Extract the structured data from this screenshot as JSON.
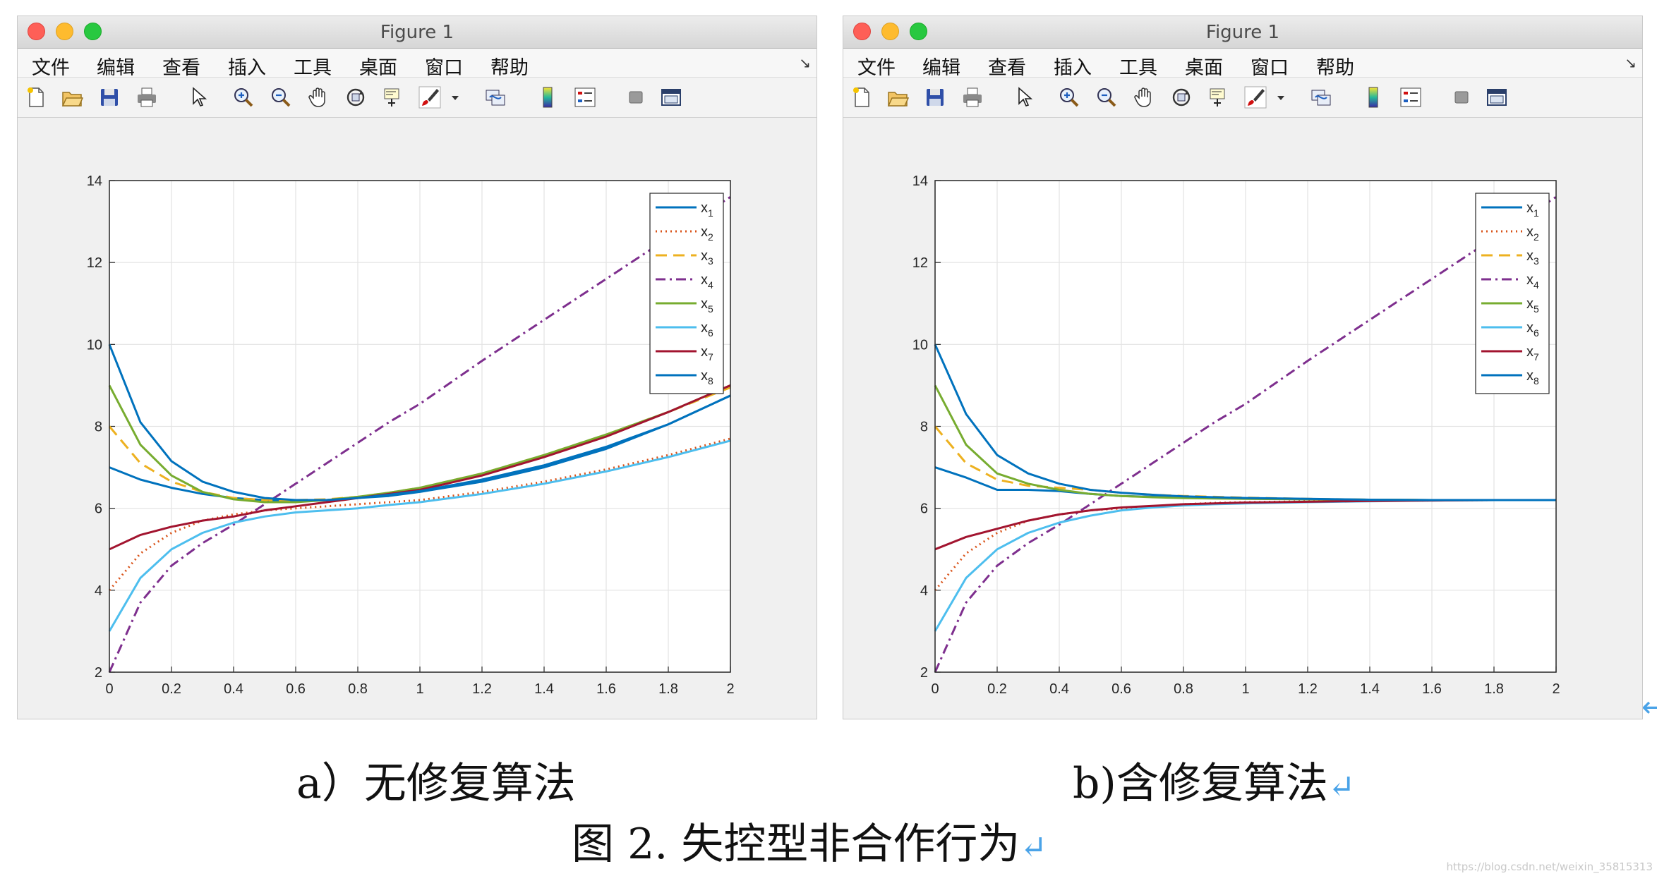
{
  "windows": [
    {
      "id": "left",
      "title": "Figure 1",
      "menu": [
        "文件",
        "编辑",
        "查看",
        "插入",
        "工具",
        "桌面",
        "窗口",
        "帮助"
      ],
      "menu_corner": "↘",
      "toolbar": [
        "new-file-icon",
        "open-folder-icon",
        "save-icon",
        "print-icon",
        "pointer-icon",
        "zoom-in-icon",
        "zoom-out-icon",
        "pan-hand-icon",
        "rotate-3d-icon",
        "data-cursor-icon",
        "brush-icon",
        "dropdown-arrow-icon",
        "link-plot-icon",
        "colorbar-icon",
        "legend-icon",
        "hide-tools-icon",
        "dock-window-icon"
      ]
    },
    {
      "id": "right",
      "title": "Figure 1",
      "menu": [
        "文件",
        "编辑",
        "查看",
        "插入",
        "工具",
        "桌面",
        "窗口",
        "帮助"
      ],
      "menu_corner": "↘",
      "toolbar": [
        "new-file-icon",
        "open-folder-icon",
        "save-icon",
        "print-icon",
        "pointer-icon",
        "zoom-in-icon",
        "zoom-out-icon",
        "pan-hand-icon",
        "rotate-3d-icon",
        "data-cursor-icon",
        "brush-icon",
        "dropdown-arrow-icon",
        "link-plot-icon",
        "colorbar-icon",
        "legend-icon",
        "hide-tools-icon",
        "dock-window-icon"
      ]
    }
  ],
  "chart_data": [
    {
      "type": "line",
      "title": "",
      "xlabel": "",
      "ylabel": "",
      "xlim": [
        0,
        2
      ],
      "ylim": [
        2,
        14
      ],
      "xticks": [
        "0",
        "0.2",
        "0.4",
        "0.6",
        "0.8",
        "1",
        "1.2",
        "1.4",
        "1.6",
        "1.8",
        "2"
      ],
      "yticks": [
        "2",
        "4",
        "6",
        "8",
        "10",
        "12",
        "14"
      ],
      "grid": true,
      "legend_position": "top-right",
      "x": [
        0,
        0.1,
        0.2,
        0.3,
        0.4,
        0.5,
        0.6,
        0.7,
        0.8,
        0.9,
        1.0,
        1.2,
        1.4,
        1.6,
        1.8,
        2.0
      ],
      "series": [
        {
          "name": "x",
          "sub": "1",
          "color": "#0072bd",
          "dash": "solid",
          "values": [
            7.0,
            6.7,
            6.5,
            6.35,
            6.25,
            6.2,
            6.18,
            6.2,
            6.25,
            6.3,
            6.4,
            6.65,
            7.0,
            7.45,
            8.05,
            8.75
          ]
        },
        {
          "name": "x",
          "sub": "2",
          "color": "#d95319",
          "dash": "dotted",
          "values": [
            4.0,
            4.9,
            5.4,
            5.7,
            5.85,
            5.95,
            6.0,
            6.05,
            6.1,
            6.15,
            6.2,
            6.4,
            6.65,
            6.95,
            7.3,
            7.7
          ]
        },
        {
          "name": "x",
          "sub": "3",
          "color": "#edb120",
          "dash": "dashed",
          "values": [
            8.0,
            7.1,
            6.65,
            6.4,
            6.25,
            6.2,
            6.2,
            6.22,
            6.28,
            6.38,
            6.5,
            6.85,
            7.3,
            7.8,
            8.35,
            8.95
          ]
        },
        {
          "name": "x",
          "sub": "4",
          "color": "#7e2f8e",
          "dash": "dashdot",
          "values": [
            2.0,
            3.7,
            4.6,
            5.15,
            5.6,
            6.1,
            6.6,
            7.1,
            7.6,
            8.1,
            8.55,
            9.6,
            10.6,
            11.6,
            12.6,
            13.6
          ]
        },
        {
          "name": "x",
          "sub": "5",
          "color": "#77ac30",
          "dash": "solid",
          "values": [
            9.0,
            7.55,
            6.8,
            6.4,
            6.22,
            6.15,
            6.15,
            6.2,
            6.28,
            6.38,
            6.5,
            6.85,
            7.3,
            7.8,
            8.35,
            9.0
          ]
        },
        {
          "name": "x",
          "sub": "6",
          "color": "#4dbeee",
          "dash": "solid",
          "values": [
            3.0,
            4.3,
            5.0,
            5.4,
            5.65,
            5.8,
            5.9,
            5.95,
            6.0,
            6.08,
            6.15,
            6.35,
            6.6,
            6.9,
            7.25,
            7.65
          ]
        },
        {
          "name": "x",
          "sub": "7",
          "color": "#a2142f",
          "dash": "solid",
          "values": [
            5.0,
            5.35,
            5.55,
            5.7,
            5.8,
            5.95,
            6.05,
            6.15,
            6.25,
            6.35,
            6.45,
            6.8,
            7.25,
            7.75,
            8.35,
            9.0
          ]
        },
        {
          "name": "x",
          "sub": "8",
          "color": "#0072bd",
          "dash": "solid",
          "values": [
            10.0,
            8.1,
            7.15,
            6.65,
            6.4,
            6.25,
            6.2,
            6.2,
            6.25,
            6.33,
            6.42,
            6.7,
            7.05,
            7.5,
            8.05,
            8.75
          ]
        }
      ]
    },
    {
      "type": "line",
      "title": "",
      "xlabel": "",
      "ylabel": "",
      "xlim": [
        0,
        2
      ],
      "ylim": [
        2,
        14
      ],
      "xticks": [
        "0",
        "0.2",
        "0.4",
        "0.6",
        "0.8",
        "1",
        "1.2",
        "1.4",
        "1.6",
        "1.8",
        "2"
      ],
      "yticks": [
        "2",
        "4",
        "6",
        "8",
        "10",
        "12",
        "14"
      ],
      "grid": true,
      "legend_position": "top-right",
      "x": [
        0,
        0.1,
        0.2,
        0.3,
        0.4,
        0.5,
        0.6,
        0.7,
        0.8,
        0.9,
        1.0,
        1.2,
        1.4,
        1.6,
        1.8,
        2.0
      ],
      "series": [
        {
          "name": "x",
          "sub": "1",
          "color": "#0072bd",
          "dash": "solid",
          "values": [
            7.0,
            6.75,
            6.45,
            6.45,
            6.42,
            6.35,
            6.3,
            6.28,
            6.26,
            6.25,
            6.24,
            6.22,
            6.21,
            6.2,
            6.2,
            6.2
          ]
        },
        {
          "name": "x",
          "sub": "2",
          "color": "#d95319",
          "dash": "dotted",
          "values": [
            4.0,
            4.9,
            5.4,
            5.7,
            5.85,
            5.95,
            6.0,
            6.05,
            6.1,
            6.13,
            6.15,
            6.17,
            6.18,
            6.19,
            6.2,
            6.2
          ]
        },
        {
          "name": "x",
          "sub": "3",
          "color": "#edb120",
          "dash": "dashed",
          "values": [
            8.0,
            7.1,
            6.7,
            6.55,
            6.5,
            6.45,
            6.38,
            6.33,
            6.3,
            6.28,
            6.26,
            6.23,
            6.21,
            6.2,
            6.2,
            6.2
          ]
        },
        {
          "name": "x",
          "sub": "4",
          "color": "#7e2f8e",
          "dash": "dashdot",
          "values": [
            2.0,
            3.7,
            4.6,
            5.15,
            5.6,
            6.1,
            6.6,
            7.1,
            7.6,
            8.1,
            8.55,
            9.6,
            10.6,
            11.6,
            12.6,
            13.6
          ]
        },
        {
          "name": "x",
          "sub": "5",
          "color": "#77ac30",
          "dash": "solid",
          "values": [
            9.0,
            7.55,
            6.85,
            6.6,
            6.45,
            6.35,
            6.3,
            6.27,
            6.25,
            6.24,
            6.23,
            6.22,
            6.21,
            6.2,
            6.2,
            6.2
          ]
        },
        {
          "name": "x",
          "sub": "6",
          "color": "#4dbeee",
          "dash": "solid",
          "values": [
            3.0,
            4.3,
            5.0,
            5.4,
            5.65,
            5.82,
            5.95,
            6.02,
            6.07,
            6.1,
            6.12,
            6.15,
            6.17,
            6.19,
            6.2,
            6.2
          ]
        },
        {
          "name": "x",
          "sub": "7",
          "color": "#a2142f",
          "dash": "solid",
          "values": [
            5.0,
            5.3,
            5.5,
            5.7,
            5.85,
            5.95,
            6.02,
            6.06,
            6.1,
            6.12,
            6.14,
            6.16,
            6.18,
            6.19,
            6.2,
            6.2
          ]
        },
        {
          "name": "x",
          "sub": "8",
          "color": "#0072bd",
          "dash": "solid",
          "values": [
            10.0,
            8.3,
            7.3,
            6.85,
            6.6,
            6.45,
            6.38,
            6.33,
            6.29,
            6.27,
            6.25,
            6.23,
            6.21,
            6.2,
            6.2,
            6.2
          ]
        }
      ]
    }
  ],
  "captions": {
    "left": "a）无修复算法",
    "right": "b)含修复算法",
    "figure": "图 2.  失控型非合作行为",
    "return_mark": "↵"
  },
  "watermark": "https://blog.csdn.net/weixin_35815313"
}
